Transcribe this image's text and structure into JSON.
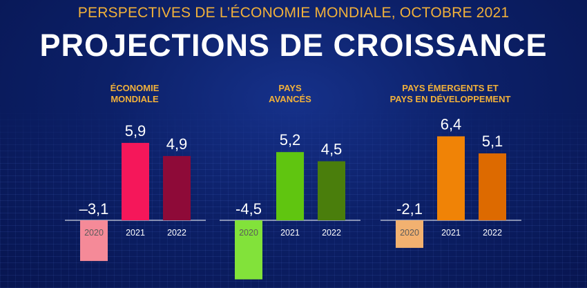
{
  "header": {
    "subtitle": "PERSPECTIVES DE L’ÉCONOMIE MONDIALE, OCTOBRE 2021",
    "title": "PROJECTIONS DE CROISSANCE"
  },
  "chart_data": [
    {
      "type": "bar",
      "title_lines": [
        "ÉCONOMIE",
        "MONDIALE"
      ],
      "categories": [
        "2020",
        "2021",
        "2022"
      ],
      "values": [
        -3.1,
        5.9,
        4.9
      ],
      "value_labels": [
        "–3,1",
        "5,9",
        "4,9"
      ],
      "colors": [
        "#f58a98",
        "#f5175a",
        "#8e0a38"
      ]
    },
    {
      "type": "bar",
      "title_lines": [
        "PAYS",
        "AVANCÉS"
      ],
      "categories": [
        "2020",
        "2021",
        "2022"
      ],
      "values": [
        -4.5,
        5.2,
        4.5
      ],
      "value_labels": [
        "-4,5",
        "5,2",
        "4,5"
      ],
      "colors": [
        "#82e23a",
        "#60c510",
        "#4a7e0c"
      ]
    },
    {
      "type": "bar",
      "title_lines": [
        "PAYS ÉMERGENTS ET",
        "PAYS EN DÉVELOPPEMENT"
      ],
      "categories": [
        "2020",
        "2021",
        "2022"
      ],
      "values": [
        -2.1,
        6.4,
        5.1
      ],
      "value_labels": [
        "-2,1",
        "6,4",
        "5,1"
      ],
      "colors": [
        "#f2b170",
        "#f08306",
        "#dd6a00"
      ]
    }
  ]
}
